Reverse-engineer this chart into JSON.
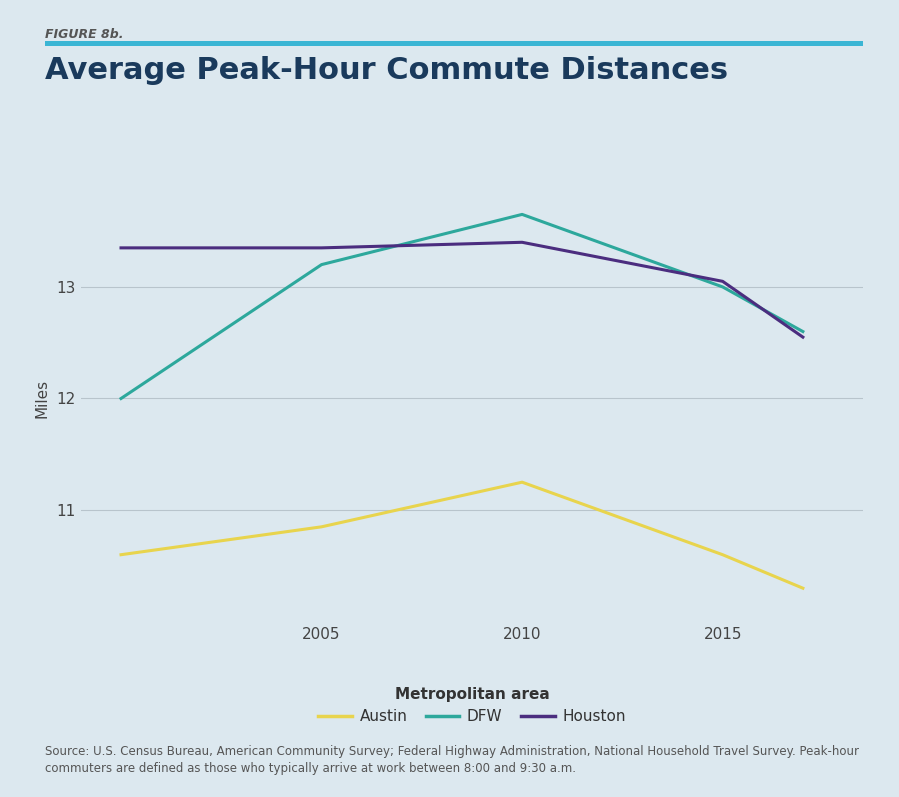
{
  "figure_label": "FIGURE 8b.",
  "title": "Average Peak-Hour Commute Distances",
  "ylabel": "Miles",
  "xlabel_legend": "Metropolitan area",
  "background_color": "#dce8ef",
  "plot_bg_color": "#dce8ef",
  "accent_bar_color": "#3ab5d4",
  "years": [
    2000,
    2005,
    2010,
    2015,
    2017
  ],
  "austin": [
    10.6,
    10.85,
    11.25,
    10.6,
    10.3
  ],
  "dfw": [
    12.0,
    13.2,
    13.65,
    13.0,
    12.6
  ],
  "houston": [
    13.35,
    13.35,
    13.4,
    13.05,
    12.55
  ],
  "austin_color": "#e8d44d",
  "dfw_color": "#2da89c",
  "houston_color": "#4b2d7f",
  "ylim": [
    10.0,
    14.0
  ],
  "yticks": [
    11,
    12,
    13
  ],
  "xtick_years": [
    2005,
    2010,
    2015
  ],
  "source_text": "Source: U.S. Census Bureau, American Community Survey; Federal Highway Administration, National Household Travel Survey. Peak-hour\ncommuters are defined as those who typically arrive at work between 8:00 and 9:30 a.m.",
  "title_fontsize": 22,
  "label_fontsize": 11,
  "tick_fontsize": 11,
  "legend_fontsize": 11,
  "source_fontsize": 8.5,
  "linewidth": 2.2,
  "fig_label_fontsize": 9,
  "xlim_left": 1999.0,
  "xlim_right": 2018.5
}
